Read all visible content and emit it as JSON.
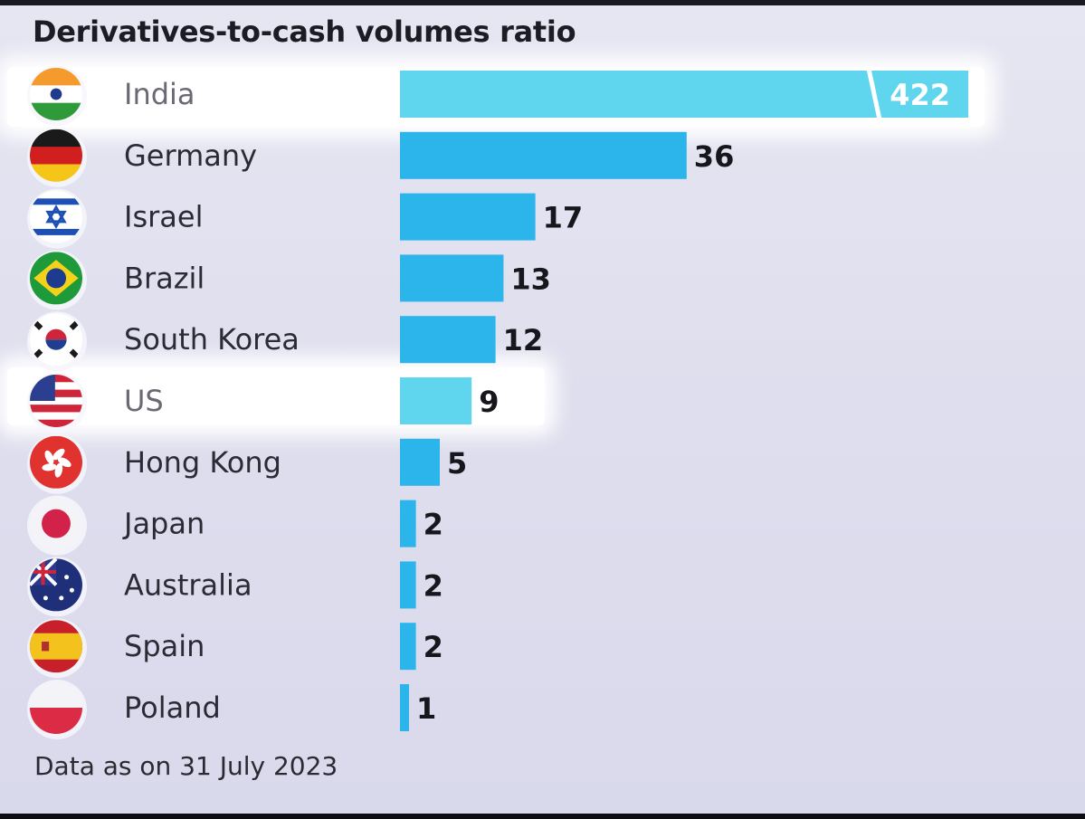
{
  "chart_data": {
    "type": "bar",
    "title": "Derivatives-to-cash volumes ratio",
    "footnote": "Data as on 31 July 2023",
    "categories": [
      "India",
      "Germany",
      "Israel",
      "Brazil",
      "South Korea",
      "US",
      "Hong Kong",
      "Japan",
      "Australia",
      "Spain",
      "Poland"
    ],
    "values": [
      422,
      36,
      17,
      13,
      12,
      9,
      5,
      2,
      2,
      2,
      1
    ],
    "value_labels": [
      "422",
      "36",
      "17",
      "13",
      "12",
      "9",
      "5",
      "2",
      "2",
      "2",
      "1"
    ],
    "highlighted": [
      "India",
      "US"
    ],
    "axis_break": "India",
    "flags": [
      "india-flag-icon",
      "germany-flag-icon",
      "israel-flag-icon",
      "brazil-flag-icon",
      "south-korea-flag-icon",
      "us-flag-icon",
      "hong-kong-flag-icon",
      "japan-flag-icon",
      "australia-flag-icon",
      "spain-flag-icon",
      "poland-flag-icon"
    ],
    "colors": {
      "bar": "#2cb5ea",
      "bar_highlight": "#5fd6ee",
      "background": "#e2e2f0"
    },
    "grid": false,
    "legend": "none"
  }
}
